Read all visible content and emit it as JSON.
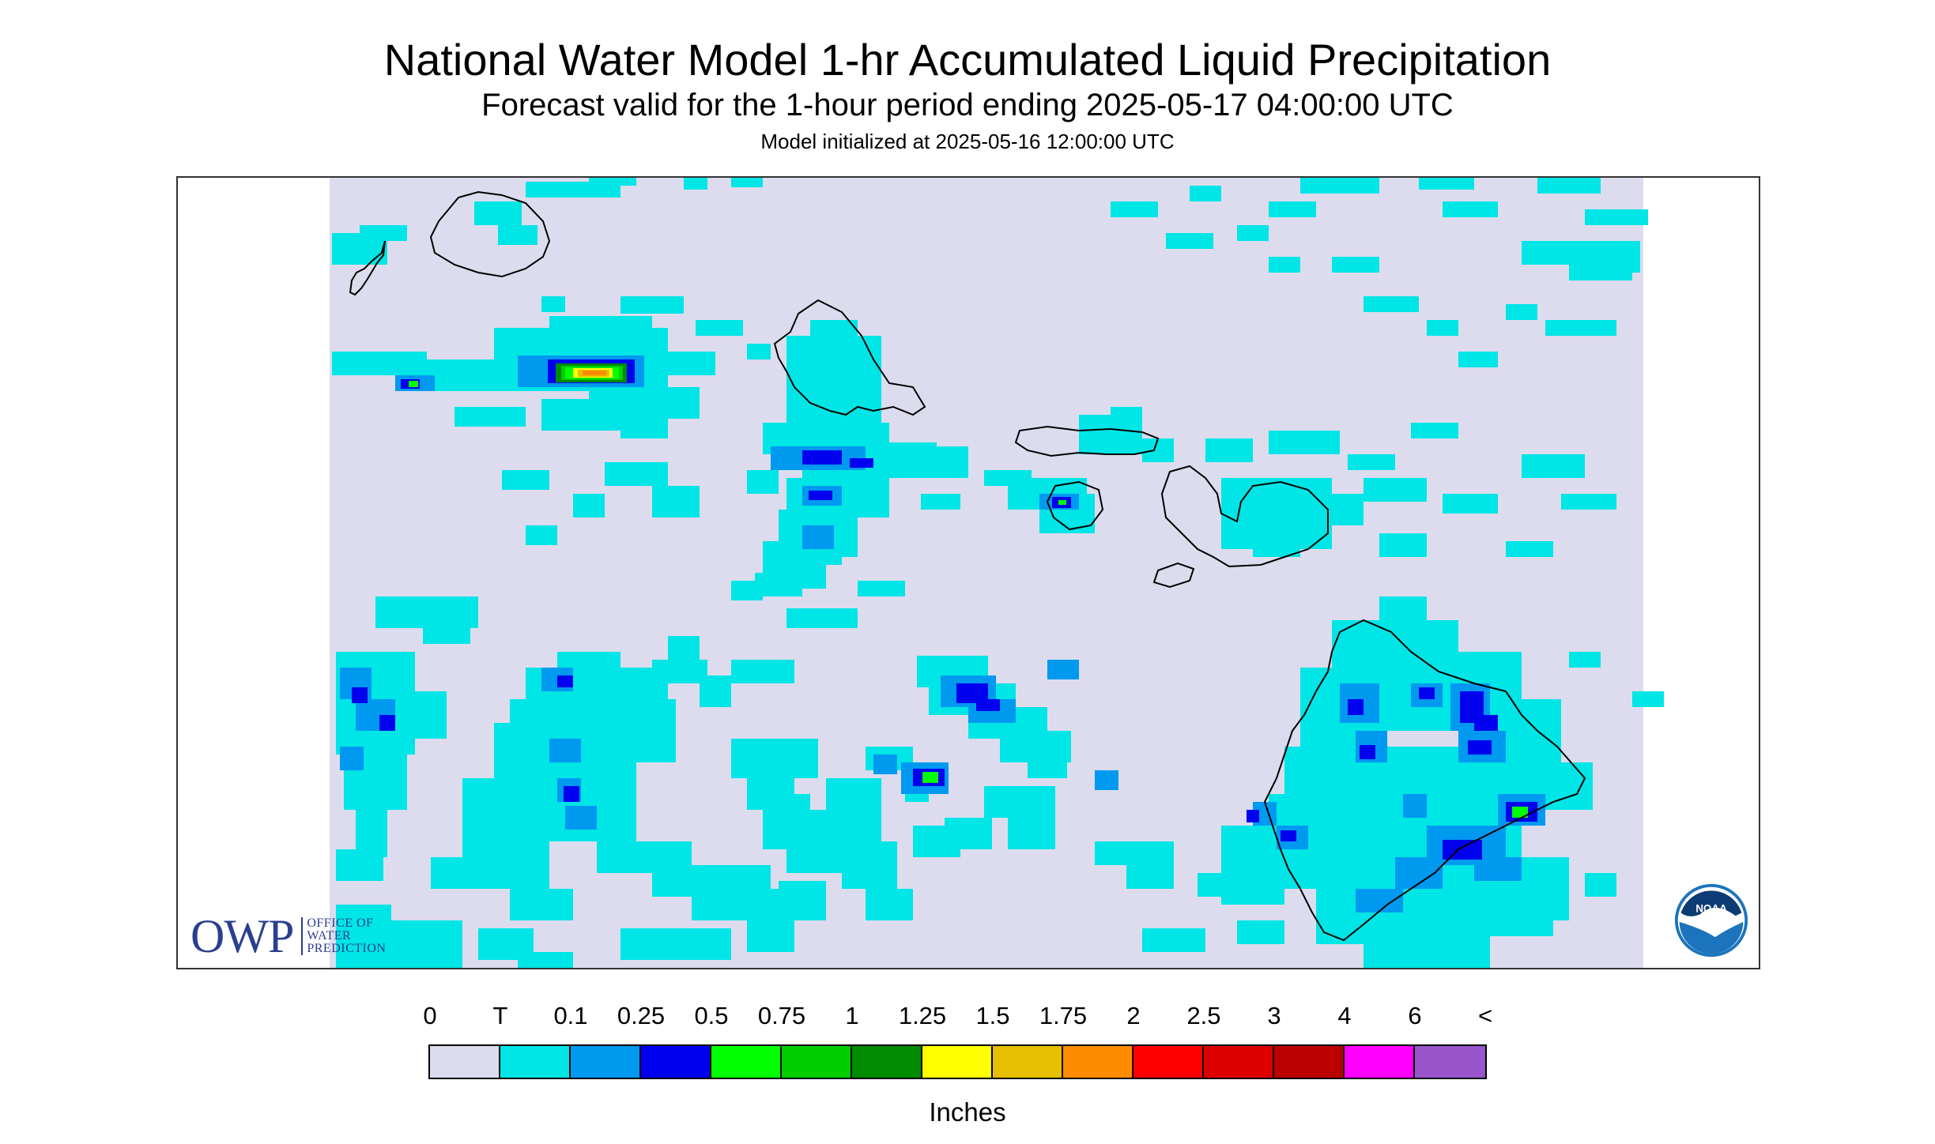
{
  "header": {
    "title": "National Water Model 1-hr Accumulated Liquid Precipitation",
    "subtitle": "Forecast valid for the 1-hour period ending 2025-05-17 04:00:00 UTC",
    "init_line": "Model initialized at 2025-05-16 12:00:00 UTC"
  },
  "logos": {
    "owp_letters": "OWP",
    "owp_line1": "OFFICE OF",
    "owp_line2": "WATER",
    "owp_line3": "PREDICTION",
    "noaa_text": "NOAA"
  },
  "legend": {
    "labels": [
      "0",
      "T",
      "0.1",
      "0.25",
      "0.5",
      "0.75",
      "1",
      "1.25",
      "1.5",
      "1.75",
      "2",
      "2.5",
      "3",
      "4",
      "6",
      "<"
    ],
    "colors": [
      "#dcdcee",
      "#00e5e5",
      "#0099f0",
      "#0000ee",
      "#00ff00",
      "#00cd00",
      "#008b00",
      "#ffff00",
      "#e5bf00",
      "#ff8c00",
      "#ff0000",
      "#dd0000",
      "#bb0000",
      "#ff00ff",
      "#9955cc"
    ],
    "units": "Inches"
  },
  "map": {
    "background_color": "#dcdcee",
    "coast_color": "#000000"
  }
}
